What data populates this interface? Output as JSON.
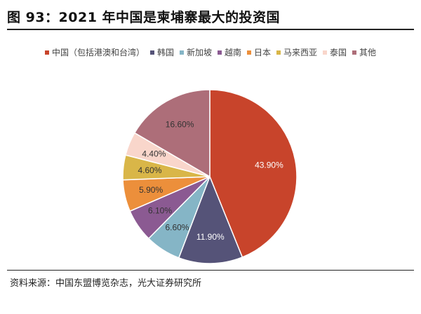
{
  "title": "图 93：2021 年中国是柬埔寨最大的投资国",
  "source": "资料来源：中国东盟博览杂志，光大证券研究所",
  "chart_data": {
    "type": "pie",
    "categories": [
      "中国（包括港澳和台湾）",
      "韩国",
      "新加坡",
      "越南",
      "日本",
      "马来西亚",
      "泰国",
      "其他"
    ],
    "values": [
      43.9,
      11.9,
      6.6,
      6.1,
      5.9,
      4.6,
      4.4,
      16.6
    ],
    "labels": [
      "43.90%",
      "11.90%",
      "6.60%",
      "6.10%",
      "5.90%",
      "4.60%",
      "4.40%",
      "16.60%"
    ],
    "colors": [
      "#c8442b",
      "#555378",
      "#85b5c6",
      "#8b5a92",
      "#ec8f3b",
      "#d9b648",
      "#f9d6cb",
      "#ad6e79"
    ],
    "label_colors": [
      "#ffffff",
      "#ffffff",
      "#333333",
      "#333333",
      "#333333",
      "#333333",
      "#333333",
      "#333333"
    ],
    "start_angle_deg": 0,
    "direction": "clockwise",
    "legend_position": "top"
  }
}
